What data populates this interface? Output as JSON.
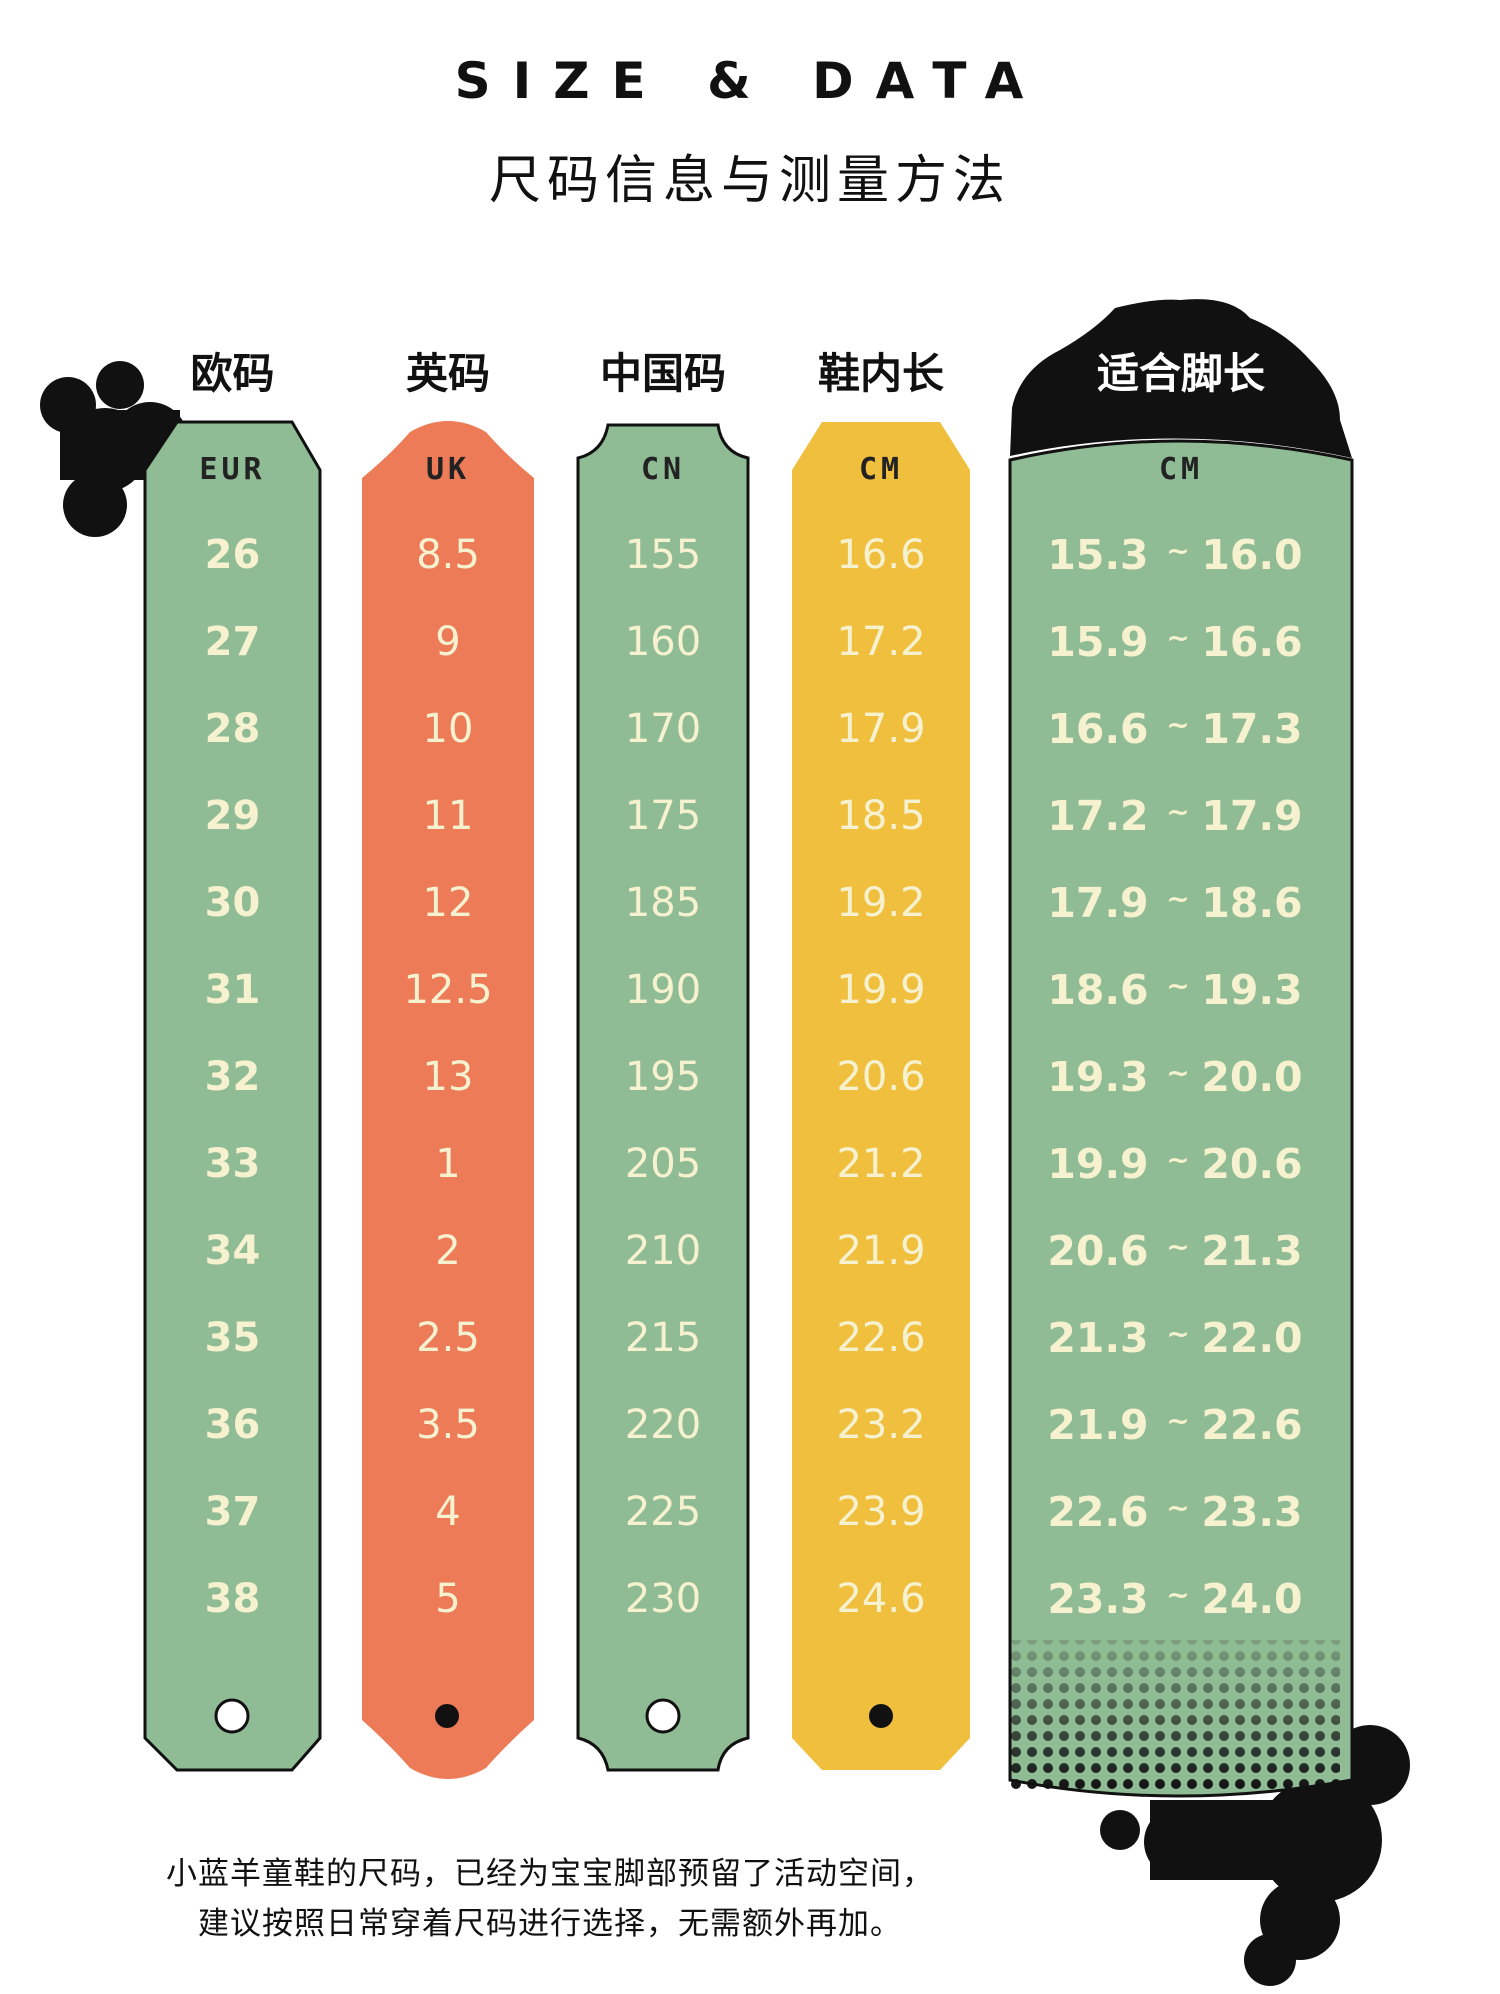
{
  "title": {
    "en": "SIZE & DATA",
    "zh": "尺码信息与测量方法"
  },
  "columns": [
    {
      "header": "欧码",
      "unit": "EUR",
      "color": "#8fbb95",
      "hole": "open",
      "values": [
        "26",
        "27",
        "28",
        "29",
        "30",
        "31",
        "32",
        "33",
        "34",
        "35",
        "36",
        "37",
        "38"
      ]
    },
    {
      "header": "英码",
      "unit": "UK",
      "color": "#ed7b58",
      "hole": "filled",
      "values": [
        "8.5",
        "9",
        "10",
        "11",
        "12",
        "12.5",
        "13",
        "1",
        "2",
        "2.5",
        "3.5",
        "4",
        "5"
      ]
    },
    {
      "header": "中国码",
      "unit": "CN",
      "color": "#8fbb95",
      "hole": "open",
      "values": [
        "155",
        "160",
        "170",
        "175",
        "185",
        "190",
        "195",
        "205",
        "210",
        "215",
        "220",
        "225",
        "230"
      ]
    },
    {
      "header": "鞋内长",
      "unit": "CM",
      "color": "#f0bf3e",
      "hole": "filled",
      "values": [
        "16.6",
        "17.2",
        "17.9",
        "18.5",
        "19.2",
        "19.9",
        "20.6",
        "21.2",
        "21.9",
        "22.6",
        "23.2",
        "23.9",
        "24.6"
      ]
    }
  ],
  "fit_column": {
    "header": "适合脚长",
    "unit": "CM",
    "color": "#8fbb95",
    "separator": "~",
    "ranges": [
      [
        "15.3",
        "16.0"
      ],
      [
        "15.9",
        "16.6"
      ],
      [
        "16.6",
        "17.3"
      ],
      [
        "17.2",
        "17.9"
      ],
      [
        "17.9",
        "18.6"
      ],
      [
        "18.6",
        "19.3"
      ],
      [
        "19.3",
        "20.0"
      ],
      [
        "19.9",
        "20.6"
      ],
      [
        "20.6",
        "21.3"
      ],
      [
        "21.3",
        "22.0"
      ],
      [
        "21.9",
        "22.6"
      ],
      [
        "22.6",
        "23.3"
      ],
      [
        "23.3",
        "24.0"
      ]
    ]
  },
  "note": {
    "line1": "小蓝羊童鞋的尺码，已经为宝宝脚部预留了活动空间，",
    "line2": "建议按照日常穿着尺码进行选择，无需额外再加。"
  },
  "colors": {
    "text_on_tag": "#f6f1cf",
    "ink": "#111111"
  }
}
